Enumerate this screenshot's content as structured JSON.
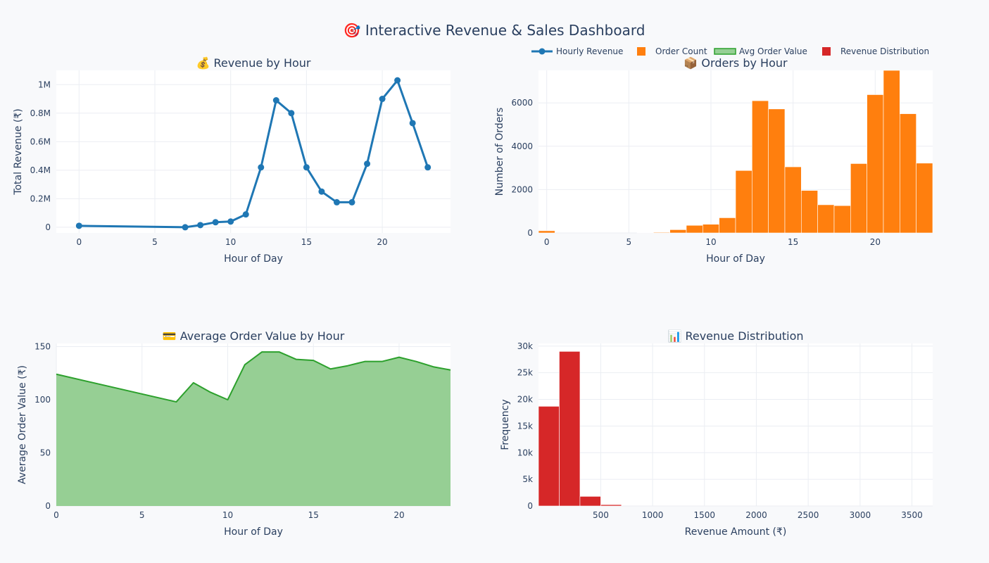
{
  "dashboard_title": "🎯 Interactive Revenue & Sales Dashboard",
  "legend": [
    {
      "label": "Hourly Revenue",
      "kind": "line-marker",
      "color": "#1f77b4"
    },
    {
      "label": "Order Count",
      "kind": "square",
      "color": "#ff7f0e"
    },
    {
      "label": "Avg Order Value",
      "kind": "area",
      "color": "#2ca02c"
    },
    {
      "label": "Revenue Distribution",
      "kind": "square",
      "color": "#d62728"
    }
  ],
  "chart_data": [
    {
      "type": "line",
      "title": "💰 Revenue by Hour",
      "xlabel": "Hour of Day",
      "ylabel": "Total Revenue (₹)",
      "color": "#1f77b4",
      "xlim": [
        -1.5,
        24.5
      ],
      "ylim": [
        -40000,
        1100000
      ],
      "xticks": [
        0,
        5,
        10,
        15,
        20
      ],
      "xtick_labels": [
        "0",
        "5",
        "10",
        "15",
        "20"
      ],
      "yticks": [
        0,
        200000,
        400000,
        600000,
        800000,
        1000000
      ],
      "ytick_labels": [
        "0",
        "0.2M",
        "0.4M",
        "0.6M",
        "0.8M",
        "1M"
      ],
      "x": [
        0,
        7,
        8,
        9,
        10,
        11,
        12,
        13,
        14,
        15,
        16,
        17,
        18,
        19,
        20,
        21,
        22,
        23
      ],
      "y": [
        10000,
        0,
        15000,
        35000,
        40000,
        90000,
        420000,
        890000,
        800000,
        420000,
        250000,
        175000,
        175000,
        445000,
        900000,
        1030000,
        730000,
        420000
      ]
    },
    {
      "type": "bar",
      "title": "📦 Orders by Hour",
      "xlabel": "Hour of Day",
      "ylabel": "Number of Orders",
      "color": "#ff7f0e",
      "xlim": [
        -0.5,
        23.5
      ],
      "ylim": [
        0,
        7500
      ],
      "xticks": [
        0,
        5,
        10,
        15,
        20
      ],
      "xtick_labels": [
        "0",
        "5",
        "10",
        "15",
        "20"
      ],
      "yticks": [
        0,
        2000,
        4000,
        6000
      ],
      "ytick_labels": [
        "0",
        "2000",
        "4000",
        "6000"
      ],
      "x": [
        0,
        1,
        2,
        3,
        4,
        5,
        6,
        7,
        8,
        9,
        10,
        11,
        12,
        13,
        14,
        15,
        16,
        17,
        18,
        19,
        20,
        21,
        22,
        23
      ],
      "y": [
        100,
        0,
        0,
        0,
        0,
        0,
        10,
        30,
        150,
        350,
        400,
        700,
        2880,
        6100,
        5720,
        3050,
        1960,
        1300,
        1260,
        3200,
        6380,
        7500,
        5500,
        3220
      ]
    },
    {
      "type": "area",
      "title": "💳 Average Order Value by Hour",
      "xlabel": "Hour of Day",
      "ylabel": "Average Order Value (₹)",
      "color": "#2ca02c",
      "fill": "#96cf94",
      "xlim": [
        0,
        23
      ],
      "ylim": [
        0,
        153
      ],
      "xticks": [
        0,
        5,
        10,
        15,
        20
      ],
      "xtick_labels": [
        "0",
        "5",
        "10",
        "15",
        "20"
      ],
      "yticks": [
        0,
        50,
        100,
        150
      ],
      "ytick_labels": [
        "0",
        "50",
        "100",
        "150"
      ],
      "x": [
        0,
        7,
        8,
        9,
        10,
        11,
        12,
        13,
        14,
        15,
        16,
        17,
        18,
        19,
        20,
        21,
        22,
        23
      ],
      "y": [
        124,
        98,
        116,
        107,
        100,
        133,
        145,
        145,
        138,
        137,
        129,
        132,
        136,
        136,
        140,
        136,
        131,
        128
      ]
    },
    {
      "type": "bar",
      "title": "📊 Revenue Distribution",
      "xlabel": "Revenue Amount (₹)",
      "ylabel": "Frequency",
      "color": "#d62728",
      "xlim": [
        -100,
        3700
      ],
      "ylim": [
        0,
        30500
      ],
      "xticks": [
        500,
        1000,
        1500,
        2000,
        2500,
        3000,
        3500
      ],
      "xtick_labels": [
        "500",
        "1000",
        "1500",
        "2000",
        "2500",
        "3000",
        "3500"
      ],
      "yticks": [
        0,
        5000,
        10000,
        15000,
        20000,
        25000,
        30000
      ],
      "ytick_labels": [
        "0",
        "5k",
        "10k",
        "15k",
        "20k",
        "25k",
        "30k"
      ],
      "bins": [
        [
          -100,
          100
        ],
        [
          100,
          300
        ],
        [
          300,
          500
        ],
        [
          500,
          700
        ]
      ],
      "y": [
        18700,
        29000,
        1800,
        250
      ]
    }
  ]
}
